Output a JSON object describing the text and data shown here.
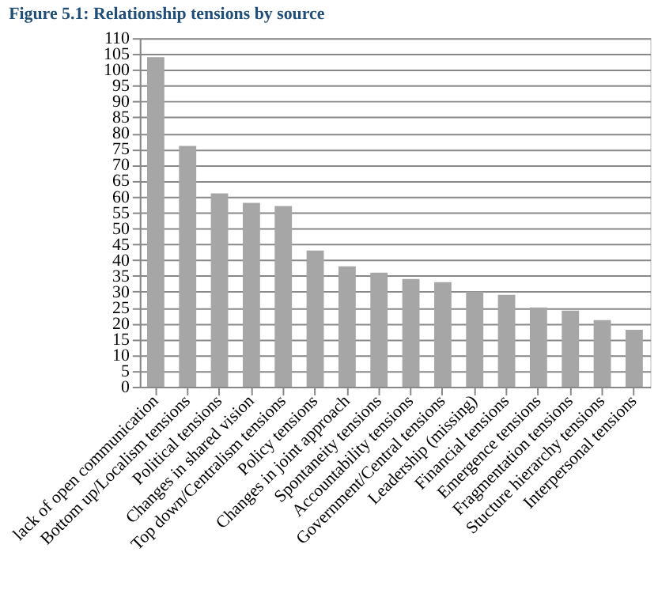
{
  "chart_data": {
    "type": "bar",
    "title": "Figure 5.1: Relationship tensions by source",
    "categories": [
      "lack of open communication",
      "Bottom up/Localism tensions",
      "Political tensions",
      "Changes in shared vision",
      "Top down/Centralism tensions",
      "Policy tensions",
      "Changes in joint approach",
      "Spontaneity tensions",
      "Accountability tensions",
      "Government/Central tensions",
      "Leadership (missing)",
      "Financial tensions",
      "Emergence tensions",
      "Fragmentation tensions",
      "Stucture hierarchy tensions",
      "Interpersonal tensions"
    ],
    "values": [
      104,
      76,
      61,
      58,
      57,
      43,
      38,
      36,
      34,
      33,
      30,
      29,
      25,
      24,
      21,
      18
    ],
    "color": "#a6a6a6",
    "ylim": [
      0,
      110
    ],
    "yticks": [
      0,
      5,
      10,
      15,
      20,
      25,
      30,
      35,
      40,
      45,
      50,
      55,
      60,
      65,
      70,
      75,
      80,
      85,
      90,
      95,
      100,
      105,
      110
    ],
    "grid": "y"
  }
}
